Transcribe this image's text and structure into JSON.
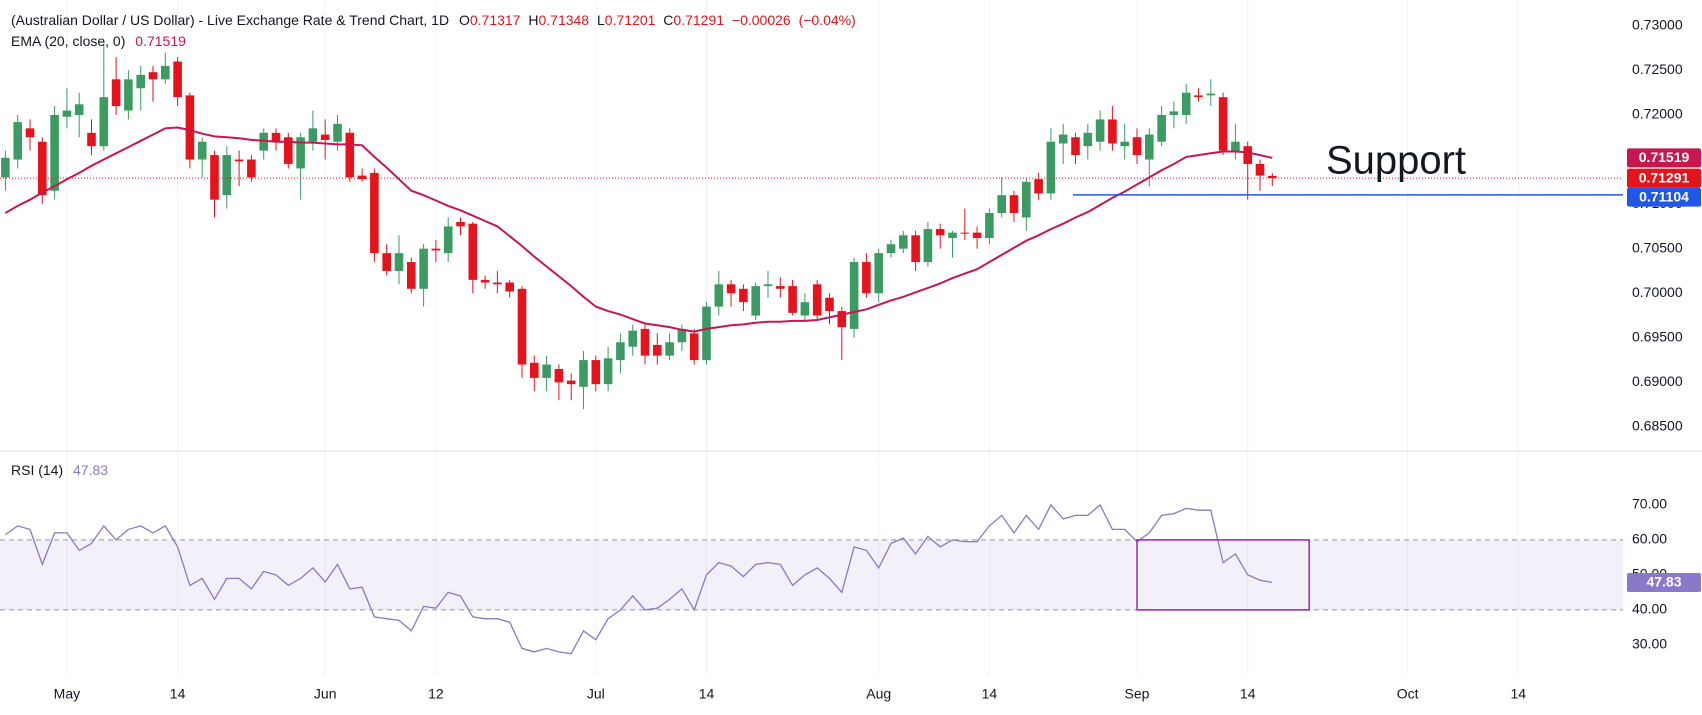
{
  "chart_data": {
    "type": "candlestick",
    "title": "(Australian Dollar / US Dollar) - Live Exchange Rate & Trend Chart, 1D",
    "ohlc_labels": [
      "O",
      "H",
      "L",
      "C"
    ],
    "change": -0.00026,
    "change_label": "−0.00026",
    "change_pct": -0.04,
    "change_pct_label": "(−0.04%)",
    "up_color": "#3b9b63",
    "down_color": "#e5131c",
    "categories": [
      null,
      null,
      null,
      null,
      null,
      "May",
      null,
      null,
      null,
      null,
      null,
      null,
      null,
      null,
      "14",
      null,
      null,
      null,
      null,
      null,
      null,
      null,
      null,
      null,
      null,
      null,
      "Jun",
      null,
      null,
      null,
      null,
      null,
      null,
      null,
      null,
      "12",
      null,
      null,
      null,
      null,
      null,
      null,
      null,
      null,
      null,
      null,
      null,
      null,
      "Jul",
      null,
      null,
      null,
      null,
      null,
      null,
      null,
      null,
      "14",
      null,
      null,
      null,
      null,
      null,
      null,
      null,
      null,
      null,
      null,
      null,
      null,
      null,
      "Aug",
      null,
      null,
      null,
      null,
      null,
      null,
      null,
      null,
      "14",
      null,
      null,
      null,
      null,
      null,
      null,
      null,
      null,
      null,
      null,
      null,
      "Sep",
      null,
      null,
      null,
      null,
      null,
      null,
      null,
      null,
      "14",
      null,
      null,
      null,
      null,
      null,
      null,
      null,
      null,
      null,
      null,
      null,
      null,
      "Oct",
      null,
      null,
      null,
      null,
      null,
      null,
      null,
      null,
      "14",
      null,
      null,
      null,
      null,
      null,
      null,
      null,
      null
    ],
    "open": [
      0.713,
      0.715,
      0.7185,
      0.717,
      0.7115,
      0.7198,
      0.72,
      0.718,
      0.7165,
      0.724,
      0.7205,
      0.723,
      0.7248,
      0.724,
      0.726,
      0.7222,
      0.715,
      0.7155,
      0.711,
      0.715,
      0.715,
      0.716,
      0.718,
      0.7175,
      0.714,
      0.717,
      0.7178,
      0.717,
      0.718,
      0.7132,
      0.7135,
      0.7045,
      0.7025,
      0.7035,
      0.7005,
      0.705,
      0.7045,
      0.708,
      0.7078,
      0.7015,
      0.7012,
      0.7012,
      0.7005,
      0.6922,
      0.6905,
      0.6915,
      0.6902,
      0.6895,
      0.6925,
      0.6898,
      0.6925,
      0.694,
      0.696,
      0.6942,
      0.693,
      0.6945,
      0.6955,
      0.6925,
      0.6985,
      0.701,
      0.7005,
      0.6975,
      0.7008,
      0.7008,
      0.7008,
      0.6975,
      0.701,
      0.6995,
      0.698,
      0.696,
      0.7035,
      0.7,
      0.7045,
      0.705,
      0.7065,
      0.7035,
      0.7072,
      0.7062,
      0.7068,
      0.7068,
      0.7062,
      0.709,
      0.711,
      0.7085,
      0.7128,
      0.7112,
      0.7168,
      0.7175,
      0.7165,
      0.717,
      0.7195,
      0.7165,
      0.7175,
      0.715,
      0.717,
      0.72,
      0.72,
      0.7222,
      0.7222,
      0.722,
      0.7158,
      0.7165,
      0.7145,
      0.71317,
      null,
      null,
      null,
      null,
      null,
      null,
      null,
      null,
      null,
      null,
      null,
      null,
      null,
      null,
      null,
      null,
      null,
      null,
      null,
      null,
      null,
      null,
      null,
      null,
      null,
      null,
      null,
      null
    ],
    "high": [
      0.716,
      0.72,
      0.7195,
      0.7175,
      0.721,
      0.723,
      0.7225,
      0.7195,
      0.728,
      0.7265,
      0.725,
      0.7255,
      0.7255,
      0.727,
      0.7265,
      0.7225,
      0.7175,
      0.716,
      0.7165,
      0.716,
      0.7155,
      0.7185,
      0.7185,
      0.718,
      0.718,
      0.7205,
      0.7195,
      0.72,
      0.7185,
      0.714,
      0.714,
      0.7055,
      0.7065,
      0.704,
      0.7055,
      0.706,
      0.7085,
      0.7085,
      0.708,
      0.702,
      0.7025,
      0.7015,
      0.7008,
      0.693,
      0.693,
      0.692,
      0.691,
      0.6935,
      0.693,
      0.694,
      0.6955,
      0.6965,
      0.6965,
      0.6955,
      0.6955,
      0.6965,
      0.696,
      0.699,
      0.7025,
      0.7015,
      0.701,
      0.7012,
      0.7025,
      0.7018,
      0.7015,
      0.7,
      0.7015,
      0.7,
      0.6985,
      0.704,
      0.7045,
      0.705,
      0.706,
      0.707,
      0.707,
      0.708,
      0.7078,
      0.707,
      0.7095,
      0.7075,
      0.7095,
      0.713,
      0.7115,
      0.713,
      0.7135,
      0.7185,
      0.719,
      0.718,
      0.719,
      0.7205,
      0.721,
      0.719,
      0.7185,
      0.7185,
      0.721,
      0.7215,
      0.7235,
      0.723,
      0.724,
      0.7225,
      0.719,
      0.717,
      0.715,
      0.71348,
      null,
      null,
      null,
      null,
      null,
      null,
      null,
      null,
      null,
      null,
      null,
      null,
      null,
      null,
      null,
      null,
      null,
      null,
      null,
      null,
      null,
      null,
      null,
      null,
      null,
      null,
      null,
      null
    ],
    "low": [
      0.7115,
      0.714,
      0.716,
      0.71,
      0.7105,
      0.7185,
      0.7175,
      0.7155,
      0.716,
      0.72,
      0.7195,
      0.7205,
      0.7215,
      0.7235,
      0.721,
      0.714,
      0.713,
      0.7085,
      0.7095,
      0.712,
      0.7125,
      0.715,
      0.716,
      0.714,
      0.7105,
      0.716,
      0.715,
      0.716,
      0.7125,
      0.7125,
      0.7035,
      0.702,
      0.701,
      0.7,
      0.6985,
      0.7035,
      0.7035,
      0.7065,
      0.7,
      0.7005,
      0.7,
      0.6995,
      0.6905,
      0.689,
      0.689,
      0.688,
      0.688,
      0.687,
      0.689,
      0.689,
      0.691,
      0.693,
      0.692,
      0.692,
      0.6925,
      0.6935,
      0.692,
      0.692,
      0.6975,
      0.6985,
      0.698,
      0.697,
      0.6995,
      0.6995,
      0.6975,
      0.697,
      0.697,
      0.6965,
      0.6925,
      0.695,
      0.6995,
      0.699,
      0.704,
      0.7045,
      0.7025,
      0.703,
      0.705,
      0.704,
      0.706,
      0.705,
      0.7055,
      0.7085,
      0.708,
      0.707,
      0.7105,
      0.7105,
      0.7145,
      0.7145,
      0.715,
      0.716,
      0.716,
      0.715,
      0.7145,
      0.712,
      0.7165,
      0.7185,
      0.719,
      0.7215,
      0.721,
      0.7155,
      0.715,
      0.7105,
      0.7115,
      0.71201,
      null,
      null,
      null,
      null,
      null,
      null,
      null,
      null,
      null,
      null,
      null,
      null,
      null,
      null,
      null,
      null,
      null,
      null,
      null,
      null,
      null,
      null,
      null,
      null,
      null,
      null,
      null,
      null
    ],
    "close": [
      0.7152,
      0.7192,
      0.7175,
      0.711,
      0.72,
      0.7205,
      0.7212,
      0.7165,
      0.722,
      0.721,
      0.724,
      0.7245,
      0.724,
      0.7255,
      0.722,
      0.715,
      0.717,
      0.7105,
      0.7155,
      0.7148,
      0.713,
      0.718,
      0.717,
      0.7145,
      0.7175,
      0.7185,
      0.7172,
      0.719,
      0.713,
      0.7128,
      0.7045,
      0.7025,
      0.7045,
      0.7005,
      0.705,
      0.7048,
      0.7075,
      0.7075,
      0.7015,
      0.7012,
      0.701,
      0.7002,
      0.692,
      0.6905,
      0.692,
      0.69,
      0.6898,
      0.6925,
      0.6898,
      0.6927,
      0.6945,
      0.6958,
      0.693,
      0.693,
      0.6945,
      0.696,
      0.6925,
      0.6985,
      0.701,
      0.7,
      0.699,
      0.7008,
      0.701,
      0.7005,
      0.6978,
      0.699,
      0.6975,
      0.698,
      0.6962,
      0.7035,
      0.7,
      0.7045,
      0.7055,
      0.7065,
      0.7035,
      0.7072,
      0.7065,
      0.7068,
      0.7067,
      0.7062,
      0.709,
      0.711,
      0.709,
      0.7125,
      0.7112,
      0.717,
      0.7178,
      0.7155,
      0.718,
      0.7195,
      0.7168,
      0.717,
      0.7155,
      0.7178,
      0.72,
      0.7204,
      0.7225,
      0.722,
      0.7224,
      0.716,
      0.717,
      0.7145,
      0.7132,
      0.71291,
      null,
      null,
      null,
      null,
      null,
      null,
      null,
      null,
      null,
      null,
      null,
      null,
      null,
      null,
      null,
      null,
      null,
      null,
      null,
      null,
      null,
      null,
      null,
      null,
      null,
      null,
      null,
      null
    ],
    "ylim": [
      0.6823,
      0.7329
    ],
    "yticks": [
      {
        "value": 0.685,
        "label": "0.68500"
      },
      {
        "value": 0.69,
        "label": "0.69000"
      },
      {
        "value": 0.695,
        "label": "0.69500"
      },
      {
        "value": 0.7,
        "label": "0.70000"
      },
      {
        "value": 0.705,
        "label": "0.70500"
      },
      {
        "value": 0.71,
        "label": "0.71000"
      },
      {
        "value": 0.715,
        "label": "0.71500"
      },
      {
        "value": 0.72,
        "label": "0.72000"
      },
      {
        "value": 0.725,
        "label": "0.72500"
      },
      {
        "value": 0.73,
        "label": "0.73000"
      }
    ],
    "grid": true,
    "ema": {
      "name": "EMA (20, close, 0)",
      "color": "#c8174f",
      "values": [
        0.709,
        0.7098,
        0.7105,
        0.7113,
        0.712,
        0.7128,
        0.7135,
        0.7143,
        0.715,
        0.7157,
        0.7164,
        0.7171,
        0.7178,
        0.7185,
        0.7186,
        0.7183,
        0.7179,
        0.7176,
        0.7175,
        0.7174,
        0.7172,
        0.7171,
        0.717,
        0.717,
        0.7169,
        0.7169,
        0.7168,
        0.7167,
        0.7167,
        0.7166,
        0.7153,
        0.7141,
        0.7128,
        0.7115,
        0.711,
        0.7104,
        0.7098,
        0.7093,
        0.7087,
        0.7081,
        0.7075,
        0.7064,
        0.7053,
        0.7041,
        0.703,
        0.7019,
        0.7008,
        0.6996,
        0.6985,
        0.698,
        0.6976,
        0.6971,
        0.6966,
        0.6964,
        0.6962,
        0.6959,
        0.6957,
        0.696,
        0.6962,
        0.6964,
        0.6965,
        0.6967,
        0.6968,
        0.6968,
        0.6969,
        0.6969,
        0.697,
        0.6973,
        0.6976,
        0.6979,
        0.6982,
        0.6987,
        0.6992,
        0.6996,
        0.7001,
        0.7006,
        0.7011,
        0.7017,
        0.7022,
        0.7027,
        0.7035,
        0.7043,
        0.7051,
        0.7059,
        0.7065,
        0.7072,
        0.7078,
        0.7085,
        0.7091,
        0.7099,
        0.7107,
        0.7114,
        0.7122,
        0.713,
        0.7138,
        0.7145,
        0.7153,
        0.7155,
        0.7157,
        0.7159,
        0.7159,
        0.7158,
        0.7155,
        0.71519,
        null,
        null,
        null,
        null,
        null,
        null,
        null,
        null,
        null,
        null,
        null,
        null,
        null,
        null,
        null,
        null,
        null,
        null,
        null,
        null,
        null,
        null,
        null,
        null,
        null,
        null,
        null,
        null
      ]
    },
    "last_line_color": "#e5131c",
    "support": {
      "label": "Support",
      "value": 0.71104,
      "color": "#2157e8",
      "text_color": "#2f5ff0"
    },
    "rsi": {
      "name": "RSI (14)",
      "color": "#8b78c9",
      "band": [
        40,
        60
      ],
      "band_color": "#7e57c2",
      "box_color": "#9c27b0",
      "values": [
        61.5,
        64,
        63,
        53,
        62,
        62,
        57,
        59,
        64,
        60,
        63,
        64,
        62,
        64,
        58,
        47,
        49,
        43,
        49,
        49,
        46,
        51,
        50,
        47,
        49,
        52,
        48,
        53,
        46,
        46.5,
        38,
        37.5,
        37,
        34,
        41,
        40.5,
        45,
        44,
        38,
        37.5,
        37.5,
        36.5,
        29,
        28,
        29,
        28,
        27.5,
        34,
        31.5,
        37.5,
        40,
        44,
        40,
        40.5,
        43,
        46,
        40,
        50,
        53.5,
        52.5,
        49.5,
        53,
        53.5,
        53,
        47,
        50,
        52,
        49,
        45,
        58,
        57,
        52,
        59,
        60.5,
        56,
        61,
        58,
        60,
        59.5,
        59.5,
        64,
        67,
        62,
        67,
        63,
        70,
        66,
        67,
        67,
        70,
        63,
        63,
        59.5,
        62,
        67,
        67.5,
        69,
        68.5,
        68.5,
        53.5,
        56,
        50,
        48.5,
        47.83,
        null,
        null,
        null,
        null,
        null,
        null,
        null,
        null,
        null,
        null,
        null,
        null,
        null,
        null,
        null,
        null,
        null,
        null,
        null,
        null,
        null,
        null,
        null,
        null,
        null,
        null,
        null,
        null
      ],
      "ylim": [
        21.4,
        85.4
      ],
      "yticks": [
        {
          "value": 30,
          "label": "30.00"
        },
        {
          "value": 40,
          "label": "40.00"
        },
        {
          "value": 50,
          "label": "50.00"
        },
        {
          "value": 60,
          "label": "60.00"
        },
        {
          "value": 70,
          "label": "70.00"
        }
      ]
    }
  }
}
